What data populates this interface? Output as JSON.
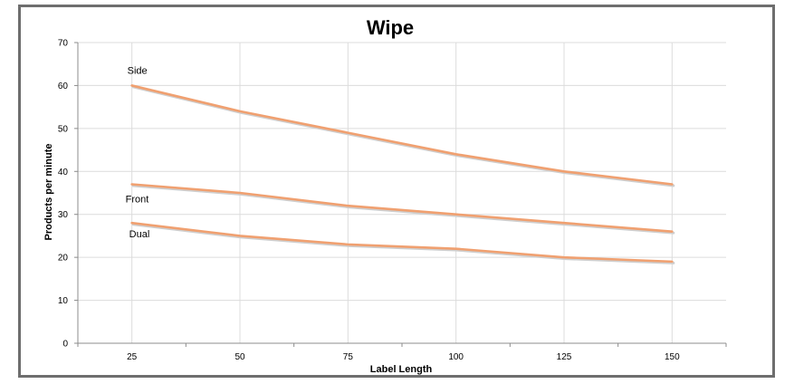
{
  "chart_data": {
    "type": "line",
    "title": "Wipe",
    "xlabel": "Label Length",
    "ylabel": "Products per minute",
    "x": [
      25,
      50,
      75,
      100,
      125,
      150
    ],
    "xlim": [
      12.5,
      162.5
    ],
    "ylim": [
      0,
      70
    ],
    "yticks": [
      0,
      10,
      20,
      30,
      40,
      50,
      60,
      70
    ],
    "grid": true,
    "legend": "none",
    "line_color": "#f0a070",
    "series": [
      {
        "name": "Side",
        "values": [
          60,
          54,
          49,
          44,
          40,
          37
        ]
      },
      {
        "name": "Front",
        "values": [
          37,
          35,
          32,
          30,
          28,
          26
        ]
      },
      {
        "name": "Dual",
        "values": [
          28,
          25,
          23,
          22,
          20,
          19
        ]
      }
    ]
  }
}
